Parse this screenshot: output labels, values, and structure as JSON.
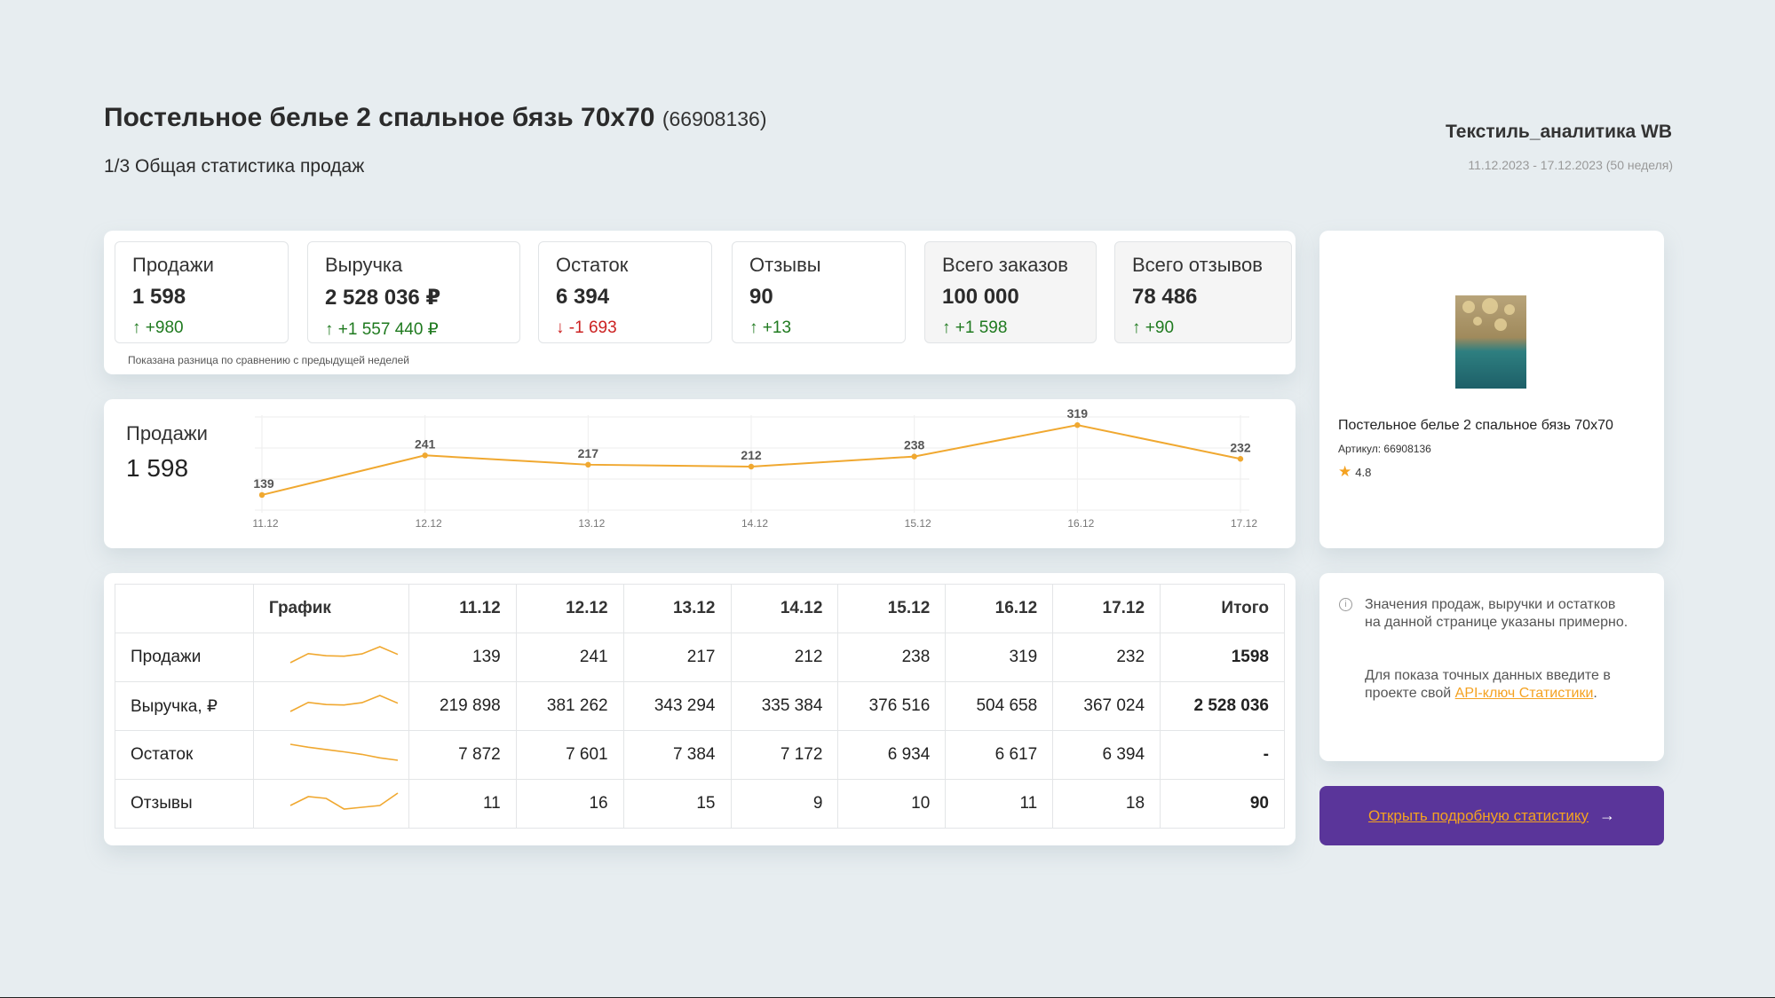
{
  "header": {
    "title": "Постельное белье 2 спальное бязь 70х70",
    "product_id": "(66908136)",
    "subtitle": "1/3 Общая статистика продаж",
    "brand": "Текстиль_аналитика WB",
    "period": "11.12.2023 - 17.12.2023 (50 неделя)"
  },
  "kpis": [
    {
      "label": "Продажи",
      "value": "1 598",
      "delta": "↑ +980",
      "trend": "up"
    },
    {
      "label": "Выручка",
      "value": "2 528 036 ₽",
      "delta": "↑ +1 557 440 ₽",
      "trend": "up"
    },
    {
      "label": "Остаток",
      "value": "6 394",
      "delta": "↓ -1 693",
      "trend": "down"
    },
    {
      "label": "Отзывы",
      "value": "90",
      "delta": "↑ +13",
      "trend": "up"
    },
    {
      "label": "Всего заказов",
      "value": "100 000",
      "delta": "↑ +1 598",
      "trend": "up"
    },
    {
      "label": "Всего отзывов",
      "value": "78 486",
      "delta": "↑ +90",
      "trend": "up"
    }
  ],
  "kpi_note": "Показана разница по сравнению с предыдущей неделей",
  "chart_data": {
    "type": "line",
    "title": "Продажи",
    "total": "1 598",
    "categories": [
      "11.12",
      "12.12",
      "13.12",
      "14.12",
      "15.12",
      "16.12",
      "17.12"
    ],
    "values": [
      139,
      241,
      217,
      212,
      238,
      319,
      232
    ],
    "grid": true,
    "color": "#f0a830"
  },
  "table": {
    "headers": [
      "",
      "График",
      "11.12",
      "12.12",
      "13.12",
      "14.12",
      "15.12",
      "16.12",
      "17.12",
      "Итого"
    ],
    "rows": [
      {
        "name": "Продажи",
        "values": [
          "139",
          "241",
          "217",
          "212",
          "238",
          "319",
          "232"
        ],
        "total": "1598",
        "spark": [
          139,
          241,
          217,
          212,
          238,
          319,
          232
        ]
      },
      {
        "name": "Выручка, ₽",
        "values": [
          "219 898",
          "381 262",
          "343 294",
          "335 384",
          "376 516",
          "504 658",
          "367 024"
        ],
        "total": "2 528 036",
        "spark": [
          219898,
          381262,
          343294,
          335384,
          376516,
          504658,
          367024
        ]
      },
      {
        "name": "Остаток",
        "values": [
          "7 872",
          "7 601",
          "7 384",
          "7 172",
          "6 934",
          "6 617",
          "6 394"
        ],
        "total": "-",
        "spark": [
          7872,
          7601,
          7384,
          7172,
          6934,
          6617,
          6394
        ]
      },
      {
        "name": "Отзывы",
        "values": [
          "11",
          "16",
          "15",
          "9",
          "10",
          "11",
          "18"
        ],
        "total": "90",
        "spark": [
          11,
          16,
          15,
          9,
          10,
          11,
          18
        ]
      }
    ]
  },
  "product": {
    "title": "Постельное белье 2 спальное бязь 70х70",
    "sku": "Артикул: 66908136",
    "rating": "4.8",
    "star_icon": "star-icon"
  },
  "info": {
    "text1": "Значения продаж, выручки и остатков на данной странице указаны примерно.",
    "text2": "Для показа точных данных введите в проекте свой ",
    "link": "API-ключ Статистики",
    "text2_end": "."
  },
  "cta": {
    "label": "Открыть подробную статистику",
    "arrow": "→"
  },
  "colors": {
    "accent": "#f4a221",
    "cta_bg": "#5a359a",
    "positive": "#1f7a1f",
    "negative": "#cc2222"
  }
}
